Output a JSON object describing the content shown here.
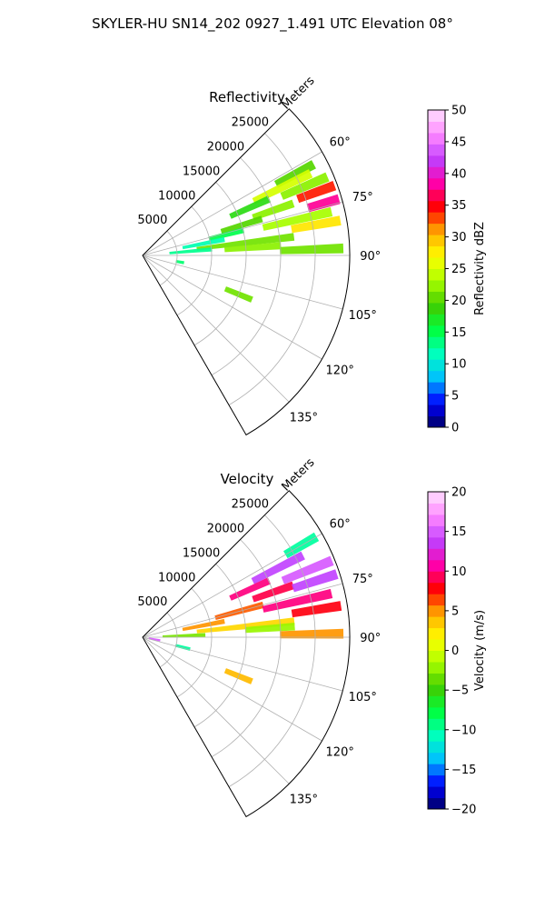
{
  "suptitle": "SKYLER-HU  SN14_202  0927_1.491 UTC Elevation 08°",
  "chart_data": [
    {
      "type": "polar-sector",
      "title": "Reflectivity",
      "radial_label": "Meters",
      "radial_ticks": [
        "5000",
        "10000",
        "15000",
        "20000",
        "25000"
      ],
      "radial_tick_values": [
        5000,
        10000,
        15000,
        20000,
        25000
      ],
      "angle_ticks": [
        "60°",
        "75°",
        "90°",
        "105°",
        "120°",
        "135°"
      ],
      "angle_tick_values": [
        60,
        75,
        90,
        105,
        120,
        135
      ],
      "theta_range_deg": [
        45,
        150
      ],
      "r_max": 30000,
      "grid": true,
      "colorbar": {
        "label": "Reflectivity dBZ",
        "range": [
          0,
          50
        ],
        "ticks": [
          "0",
          "5",
          "10",
          "15",
          "20",
          "25",
          "30",
          "35",
          "40",
          "45",
          "50"
        ],
        "stops": [
          "#000060",
          "#0000ff",
          "#00bfff",
          "#00ffbf",
          "#00ff40",
          "#40cc00",
          "#aaff00",
          "#ffff00",
          "#ffaa00",
          "#ff0000",
          "#ff00aa",
          "#bf40ff",
          "#ff88ff",
          "#ffe0ff"
        ]
      },
      "cells": [
        {
          "az": 62,
          "r0": 22000,
          "r1": 28000,
          "dz": 20
        },
        {
          "az": 64,
          "r0": 18000,
          "r1": 27000,
          "dz": 25
        },
        {
          "az": 66,
          "r0": 14000,
          "r1": 20000,
          "dz": 18
        },
        {
          "az": 67,
          "r0": 22000,
          "r1": 29000,
          "dz": 22
        },
        {
          "az": 70,
          "r0": 24000,
          "r1": 29500,
          "dz": 34
        },
        {
          "az": 71,
          "r0": 17000,
          "r1": 23000,
          "dz": 22
        },
        {
          "az": 73,
          "r0": 12000,
          "r1": 18000,
          "dz": 20
        },
        {
          "az": 74,
          "r0": 25000,
          "r1": 29500,
          "dz": 38
        },
        {
          "az": 76,
          "r0": 10000,
          "r1": 15000,
          "dz": 15
        },
        {
          "az": 77,
          "r0": 18000,
          "r1": 28000,
          "dz": 23
        },
        {
          "az": 79,
          "r0": 6000,
          "r1": 12000,
          "dz": 12
        },
        {
          "az": 80,
          "r0": 22000,
          "r1": 29000,
          "dz": 28
        },
        {
          "az": 83,
          "r0": 8000,
          "r1": 22000,
          "dz": 21
        },
        {
          "az": 85,
          "r0": 4000,
          "r1": 10000,
          "dz": 13
        },
        {
          "az": 86,
          "r0": 12000,
          "r1": 20000,
          "dz": 22
        },
        {
          "az": 88,
          "r0": 20000,
          "r1": 29000,
          "dz": 21
        },
        {
          "az": 100,
          "r0": 5000,
          "r1": 6000,
          "dz": 14
        },
        {
          "az": 112,
          "r0": 13000,
          "r1": 17000,
          "dz": 21
        }
      ]
    },
    {
      "type": "polar-sector",
      "title": "Velocity",
      "radial_label": "Meters",
      "radial_ticks": [
        "5000",
        "10000",
        "15000",
        "20000",
        "25000"
      ],
      "radial_tick_values": [
        5000,
        10000,
        15000,
        20000,
        25000
      ],
      "angle_ticks": [
        "60°",
        "75°",
        "90°",
        "105°",
        "120°",
        "135°"
      ],
      "angle_tick_values": [
        60,
        75,
        90,
        105,
        120,
        135
      ],
      "theta_range_deg": [
        45,
        150
      ],
      "r_max": 30000,
      "grid": true,
      "colorbar": {
        "label": "Velocity (m/s)",
        "range": [
          -20,
          20
        ],
        "ticks": [
          "−20",
          "−15",
          "−10",
          "−5",
          "0",
          "5",
          "10",
          "15",
          "20"
        ],
        "stops": [
          "#000060",
          "#0000ff",
          "#00bfff",
          "#00ffbf",
          "#00ff40",
          "#40cc00",
          "#aaff00",
          "#ffff00",
          "#ffaa00",
          "#ff0000",
          "#ff00aa",
          "#bf40ff",
          "#ff88ff",
          "#ffe0ff"
        ]
      },
      "cells": [
        {
          "az": 60,
          "r0": 24000,
          "r1": 29000,
          "dz": -10
        },
        {
          "az": 63,
          "r0": 18000,
          "r1": 26000,
          "dz": 14
        },
        {
          "az": 66,
          "r0": 14000,
          "r1": 20000,
          "dz": 10
        },
        {
          "az": 68,
          "r0": 22000,
          "r1": 29500,
          "dz": 15
        },
        {
          "az": 71,
          "r0": 17000,
          "r1": 23000,
          "dz": 9
        },
        {
          "az": 72,
          "r0": 23000,
          "r1": 29500,
          "dz": 14
        },
        {
          "az": 75,
          "r0": 11000,
          "r1": 18000,
          "dz": 6
        },
        {
          "az": 77,
          "r0": 18000,
          "r1": 28000,
          "dz": 10
        },
        {
          "az": 79,
          "r0": 6000,
          "r1": 12000,
          "dz": 5
        },
        {
          "az": 81,
          "r0": 22000,
          "r1": 29000,
          "dz": 8
        },
        {
          "az": 84,
          "r0": 8000,
          "r1": 22000,
          "dz": 3
        },
        {
          "az": 86,
          "r0": 15000,
          "r1": 22000,
          "dz": -2
        },
        {
          "az": 88,
          "r0": 3000,
          "r1": 9000,
          "dz": -3
        },
        {
          "az": 89,
          "r0": 20000,
          "r1": 29000,
          "dz": 5
        },
        {
          "az": 100,
          "r0": 1000,
          "r1": 2500,
          "dz": 15
        },
        {
          "az": 104,
          "r0": 5000,
          "r1": 7000,
          "dz": -10
        },
        {
          "az": 112,
          "r0": 13000,
          "r1": 17000,
          "dz": 4
        }
      ]
    }
  ]
}
